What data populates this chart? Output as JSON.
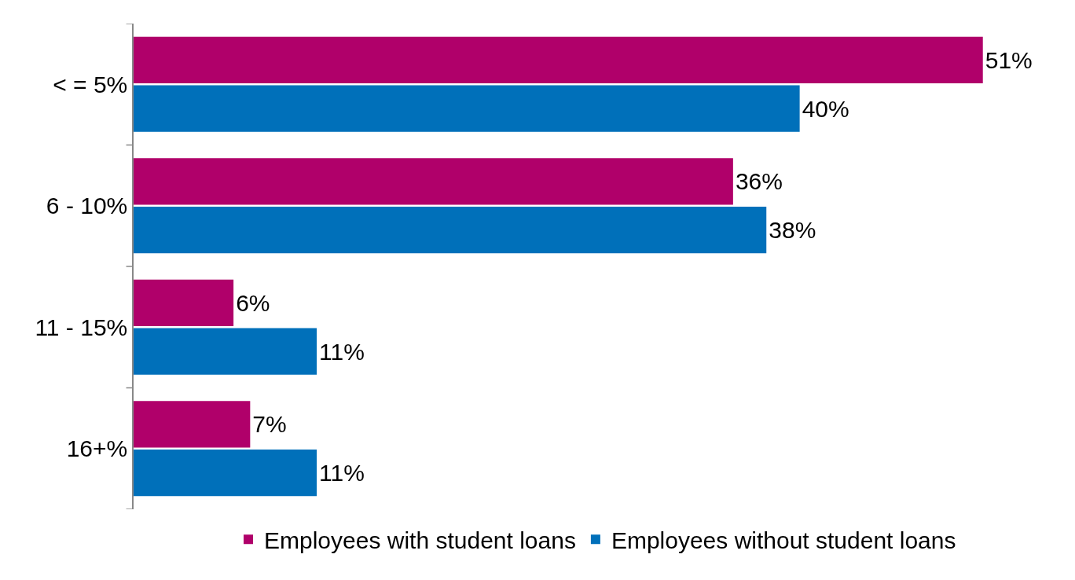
{
  "chart_data": {
    "type": "bar",
    "orientation": "horizontal",
    "categories": [
      "< = 5%",
      "6 - 10%",
      "11 - 15%",
      "16+%"
    ],
    "series": [
      {
        "name": "Employees with student loans",
        "color": "#b0006a",
        "values": [
          51,
          36,
          6,
          7
        ],
        "value_labels": [
          "51%",
          "36%",
          "6%",
          "7%"
        ]
      },
      {
        "name": "Employees without student loans",
        "color": "#0070ba",
        "values": [
          40,
          38,
          11,
          11
        ],
        "value_labels": [
          "40%",
          "38%",
          "11%",
          "11%"
        ]
      }
    ],
    "legend": "bottom"
  }
}
